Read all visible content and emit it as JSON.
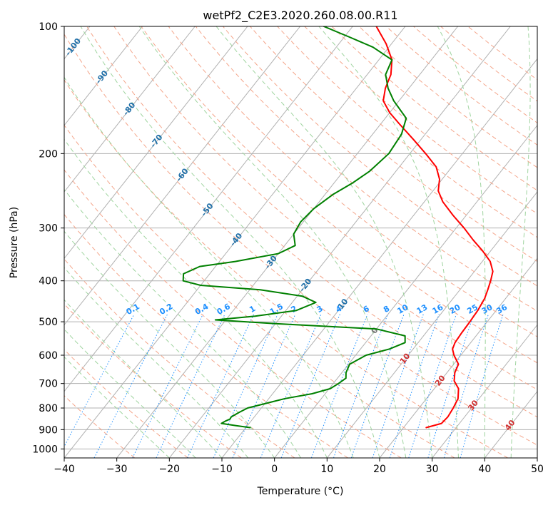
{
  "chart_data": {
    "type": "line",
    "chart_kind": "skew-T log-p diagram",
    "title": "wetPf2_C2E3.2020.260.08.00.R11",
    "xlabel": "Temperature (°C)",
    "ylabel": "Pressure (hPa)",
    "xlim": [
      -40,
      50
    ],
    "ylim": [
      1050,
      100
    ],
    "y_scale": "log",
    "x_ticks": [
      -40,
      -30,
      -20,
      -10,
      0,
      10,
      20,
      30,
      40,
      50
    ],
    "x_tick_labels": [
      "−40",
      "−30",
      "−20",
      "−10",
      "0",
      "10",
      "20",
      "30",
      "40",
      "50"
    ],
    "y_ticks": [
      100,
      200,
      300,
      400,
      500,
      600,
      700,
      800,
      900,
      1000
    ],
    "y_tick_labels": [
      "100",
      "200",
      "300",
      "400",
      "500",
      "600",
      "700",
      "800",
      "900",
      "1000"
    ],
    "grid": true,
    "legend": "none",
    "series": [
      {
        "color": "#ff0000",
        "role": "temperature",
        "points": [
          {
            "p": 890,
            "t": 24.3
          },
          {
            "p": 870,
            "t": 26.6
          },
          {
            "p": 840,
            "t": 26.8
          },
          {
            "p": 800,
            "t": 26.5
          },
          {
            "p": 760,
            "t": 26.0
          },
          {
            "p": 720,
            "t": 24.6
          },
          {
            "p": 690,
            "t": 22.6
          },
          {
            "p": 660,
            "t": 21.5
          },
          {
            "p": 630,
            "t": 20.9
          },
          {
            "p": 600,
            "t": 18.7
          },
          {
            "p": 580,
            "t": 17.5
          },
          {
            "p": 560,
            "t": 17.0
          },
          {
            "p": 530,
            "t": 16.8
          },
          {
            "p": 500,
            "t": 16.7
          },
          {
            "p": 470,
            "t": 16.5
          },
          {
            "p": 440,
            "t": 16.0
          },
          {
            "p": 420,
            "t": 15.3
          },
          {
            "p": 400,
            "t": 14.5
          },
          {
            "p": 380,
            "t": 13.5
          },
          {
            "p": 360,
            "t": 11.5
          },
          {
            "p": 340,
            "t": 8.5
          },
          {
            "p": 320,
            "t": 5.0
          },
          {
            "p": 300,
            "t": 1.5
          },
          {
            "p": 280,
            "t": -2.5
          },
          {
            "p": 260,
            "t": -6.5
          },
          {
            "p": 245,
            "t": -9.0
          },
          {
            "p": 230,
            "t": -10.5
          },
          {
            "p": 215,
            "t": -13.0
          },
          {
            "p": 200,
            "t": -17.0
          },
          {
            "p": 185,
            "t": -21.5
          },
          {
            "p": 170,
            "t": -26.5
          },
          {
            "p": 160,
            "t": -30.0
          },
          {
            "p": 150,
            "t": -33.0
          },
          {
            "p": 140,
            "t": -34.5
          },
          {
            "p": 130,
            "t": -35.5
          },
          {
            "p": 120,
            "t": -37.5
          },
          {
            "p": 110,
            "t": -41.0
          },
          {
            "p": 100,
            "t": -45.5
          }
        ]
      },
      {
        "color": "#008000",
        "role": "dewpoint",
        "points": [
          {
            "p": 890,
            "t": -9.2
          },
          {
            "p": 880,
            "t": -12.3
          },
          {
            "p": 870,
            "t": -15.3
          },
          {
            "p": 860,
            "t": -14.9
          },
          {
            "p": 850,
            "t": -14.3
          },
          {
            "p": 840,
            "t": -14.4
          },
          {
            "p": 820,
            "t": -13.6
          },
          {
            "p": 800,
            "t": -12.6
          },
          {
            "p": 780,
            "t": -9.8
          },
          {
            "p": 760,
            "t": -6.9
          },
          {
            "p": 740,
            "t": -2.5
          },
          {
            "p": 720,
            "t": 0.2
          },
          {
            "p": 700,
            "t": 1.0
          },
          {
            "p": 680,
            "t": 1.6
          },
          {
            "p": 660,
            "t": 0.8
          },
          {
            "p": 630,
            "t": 0.2
          },
          {
            "p": 600,
            "t": 2.0
          },
          {
            "p": 580,
            "t": 5.5
          },
          {
            "p": 560,
            "t": 7.5
          },
          {
            "p": 540,
            "t": 6.5
          },
          {
            "p": 520,
            "t": 0.0
          },
          {
            "p": 505,
            "t": -20.0
          },
          {
            "p": 495,
            "t": -32.0
          },
          {
            "p": 485,
            "t": -25.0
          },
          {
            "p": 470,
            "t": -18.0
          },
          {
            "p": 450,
            "t": -15.5
          },
          {
            "p": 435,
            "t": -19.0
          },
          {
            "p": 420,
            "t": -28.0
          },
          {
            "p": 410,
            "t": -40.0
          },
          {
            "p": 400,
            "t": -44.0
          },
          {
            "p": 385,
            "t": -45.0
          },
          {
            "p": 370,
            "t": -43.0
          },
          {
            "p": 360,
            "t": -37.0
          },
          {
            "p": 345,
            "t": -30.0
          },
          {
            "p": 330,
            "t": -28.0
          },
          {
            "p": 310,
            "t": -30.0
          },
          {
            "p": 290,
            "t": -30.5
          },
          {
            "p": 270,
            "t": -30.0
          },
          {
            "p": 250,
            "t": -28.5
          },
          {
            "p": 235,
            "t": -26.5
          },
          {
            "p": 220,
            "t": -25.0
          },
          {
            "p": 200,
            "t": -24.0
          },
          {
            "p": 180,
            "t": -24.5
          },
          {
            "p": 165,
            "t": -26.0
          },
          {
            "p": 150,
            "t": -31.0
          },
          {
            "p": 140,
            "t": -34.0
          },
          {
            "p": 130,
            "t": -36.5
          },
          {
            "p": 120,
            "t": -37.5
          },
          {
            "p": 112,
            "t": -43.0
          },
          {
            "p": 106,
            "t": -49.0
          },
          {
            "p": 100,
            "t": -55.5
          }
        ]
      }
    ],
    "isotherm_labels": [
      {
        "text": "-100",
        "t": -100,
        "p": 112
      },
      {
        "text": "-90",
        "t": -90,
        "p": 132
      },
      {
        "text": "-80",
        "t": -80,
        "p": 157
      },
      {
        "text": "-70",
        "t": -70,
        "p": 187
      },
      {
        "text": "-60",
        "t": -60,
        "p": 225
      },
      {
        "text": "-50",
        "t": -50,
        "p": 272
      },
      {
        "text": "-40",
        "t": -40,
        "p": 320
      },
      {
        "text": "-30",
        "t": -30,
        "p": 362
      },
      {
        "text": "-20",
        "t": -20,
        "p": 410
      },
      {
        "text": "-10",
        "t": -10,
        "p": 458
      },
      {
        "text": "0",
        "t": 0,
        "p": 525
      },
      {
        "text": "10",
        "t": 10,
        "p": 612
      },
      {
        "text": "20",
        "t": 20,
        "p": 690
      },
      {
        "text": "30",
        "t": 30,
        "p": 790
      },
      {
        "text": "40",
        "t": 40,
        "p": 880
      }
    ],
    "mixing_ratio_labels": [
      "0.1",
      "0.2",
      "0.4",
      "0.6",
      "1",
      "1.5",
      "2",
      "3",
      "4",
      "6",
      "8",
      "10",
      "13",
      "16",
      "20",
      "25",
      "30",
      "36"
    ],
    "mixing_ratio_label_pressure": 480,
    "colors": {
      "temperature": "#ff0000",
      "dewpoint": "#008000",
      "isotherm_label_cold": "#1f6fa8",
      "isotherm_label_zero": "#777777",
      "isotherm_label_warm": "#d03030",
      "mixing_ratio": "#1e90ff",
      "dry_adiabat": "#f4a58a",
      "moist_adiabat": "#9fd49f",
      "grid": "#b0b0b0"
    }
  }
}
